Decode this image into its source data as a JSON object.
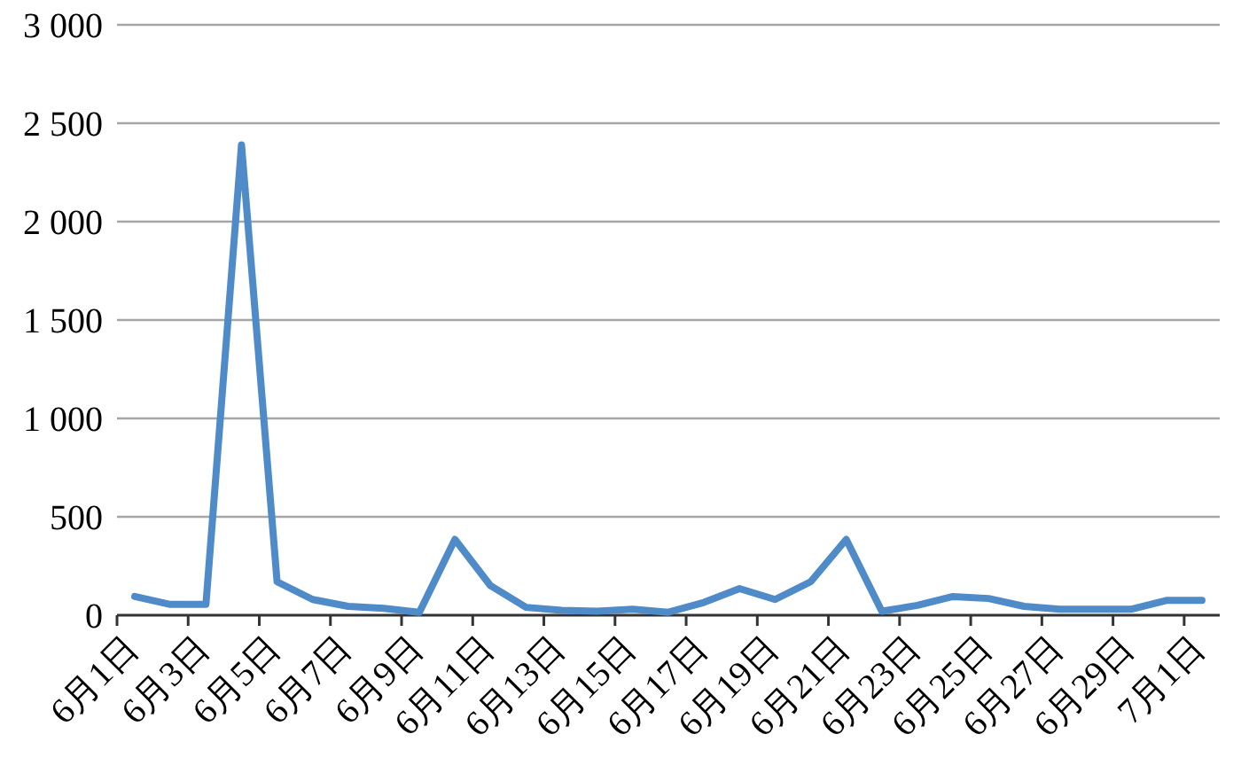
{
  "chart_data": {
    "type": "line",
    "categories": [
      "6月1日",
      null,
      "6月3日",
      null,
      "6月5日",
      null,
      "6月7日",
      null,
      "6月9日",
      null,
      "6月11日",
      null,
      "6月13日",
      null,
      "6月15日",
      null,
      "6月17日",
      null,
      "6月19日",
      null,
      "6月21日",
      null,
      "6月23日",
      null,
      "6月25日",
      null,
      "6月27日",
      null,
      "6月29日",
      null,
      "7月1日"
    ],
    "series": [
      {
        "color": "#4f8ac9",
        "values": [
          95,
          55,
          55,
          2390,
          170,
          80,
          45,
          35,
          15,
          385,
          150,
          40,
          25,
          20,
          30,
          15,
          65,
          135,
          80,
          170,
          385,
          20,
          50,
          95,
          85,
          45,
          30,
          30,
          30,
          75,
          75
        ]
      }
    ],
    "ylim": [
      0,
      3000
    ],
    "yticks": [
      {
        "value": 0,
        "label": "0"
      },
      {
        "value": 500,
        "label": "500"
      },
      {
        "value": 1000,
        "label": "1 000"
      },
      {
        "value": 1500,
        "label": "1 500"
      },
      {
        "value": 2000,
        "label": "2 000"
      },
      {
        "value": 2500,
        "label": "2 500"
      },
      {
        "value": 3000,
        "label": "3 000"
      }
    ],
    "grid": "y"
  }
}
